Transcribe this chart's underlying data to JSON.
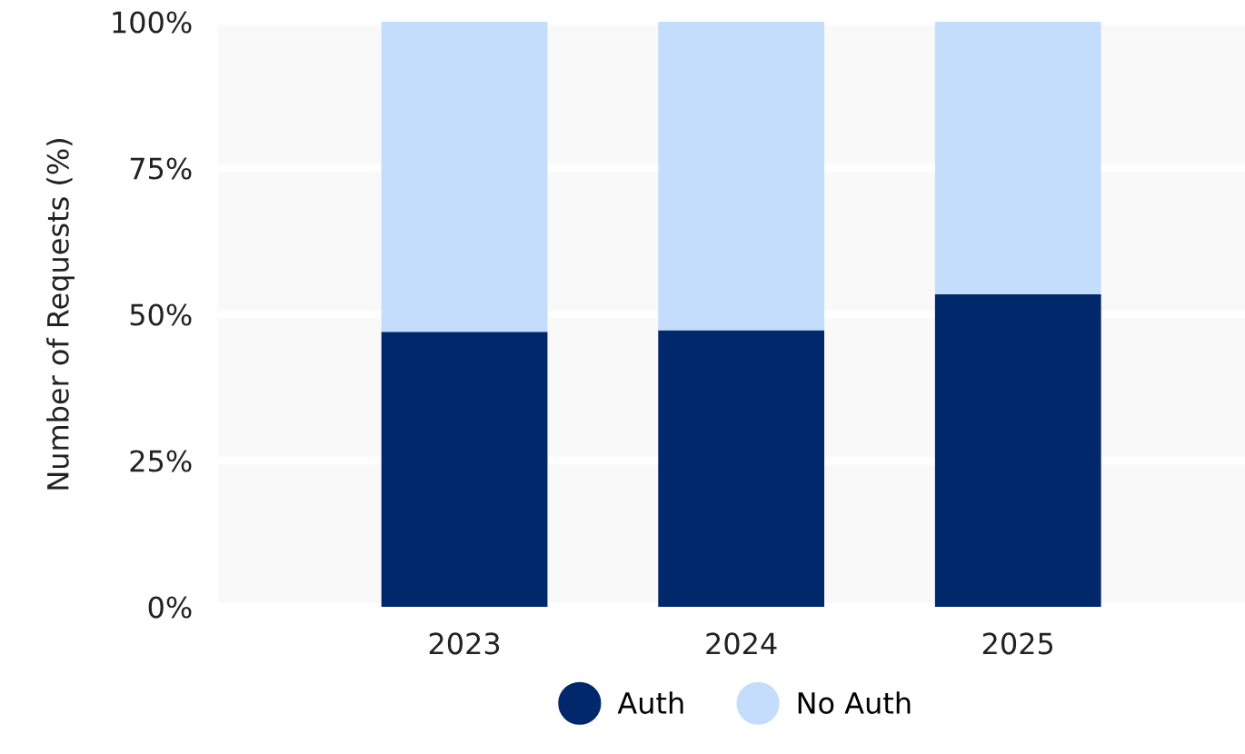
{
  "chart_data": {
    "type": "bar",
    "stacked": true,
    "ylabel": "Number of Requests (%)",
    "categories": [
      "2023",
      "2024",
      "2025"
    ],
    "series": [
      {
        "name": "Auth",
        "color": "#00286b",
        "values": [
          47.0,
          47.3,
          53.4
        ]
      },
      {
        "name": "No Auth",
        "color": "#c4ddfd",
        "values": [
          53.0,
          52.7,
          46.6
        ]
      }
    ],
    "ylim": [
      0,
      100
    ],
    "yticks": [
      {
        "value": 0,
        "label": "0%"
      },
      {
        "value": 25,
        "label": "25%"
      },
      {
        "value": 50,
        "label": "50%"
      },
      {
        "value": 75,
        "label": "75%"
      },
      {
        "value": 100,
        "label": "100%"
      }
    ],
    "grid": "y",
    "legend": "bottom"
  }
}
